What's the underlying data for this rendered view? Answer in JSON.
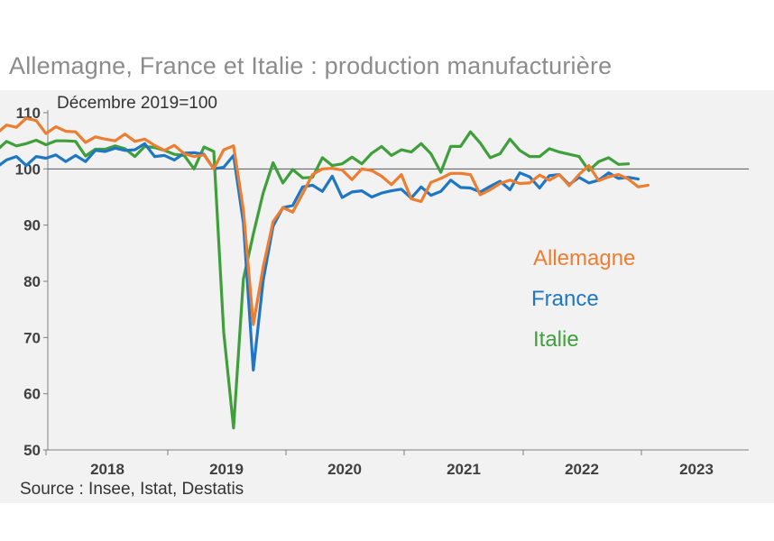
{
  "chart_data": {
    "type": "line",
    "title": "Allemagne, France et Italie : production manufacturière",
    "subtitle": "Décembre 2019=100",
    "source": "Source : Insee, Istat, Destatis",
    "start": [
      2017,
      7
    ],
    "ylim": [
      50,
      110
    ],
    "yticks": [
      50,
      60,
      70,
      80,
      90,
      100,
      110
    ],
    "reference_line": 100,
    "xtick_labels": [
      "2018",
      "2019",
      "2020",
      "2021",
      "2022",
      "2023"
    ],
    "series": [
      {
        "name": "Allemagne",
        "color": "#ed7d31",
        "values": [
          108.2,
          106.3,
          107.8,
          107.4,
          109.0,
          108.6,
          106.3,
          107.5,
          106.7,
          106.6,
          104.7,
          105.7,
          105.3,
          105.0,
          106.2,
          104.9,
          105.3,
          104.2,
          103.3,
          104.2,
          102.7,
          102.2,
          102.5,
          100.0,
          103.4,
          104.1,
          92.7,
          72.3,
          82.5,
          90.6,
          93.1,
          92.3,
          95.6,
          99.0,
          100.0,
          100.1,
          99.8,
          98.1,
          100.0,
          99.7,
          98.7,
          97.2,
          99.0,
          94.7,
          94.2,
          97.6,
          98.3,
          99.2,
          99.2,
          99.0,
          95.4,
          96.3,
          97.4,
          98.0,
          97.4,
          97.5,
          98.9,
          98.0,
          99.0,
          97.0,
          99.0,
          100.6,
          97.9,
          98.6,
          99.0,
          98.2,
          96.8,
          97.1
        ]
      },
      {
        "name": "France",
        "color": "#1f77c4",
        "values": [
          100.6,
          100.3,
          101.6,
          102.2,
          100.6,
          102.2,
          101.9,
          102.5,
          101.3,
          102.4,
          101.3,
          103.3,
          103.1,
          103.7,
          103.3,
          103.4,
          104.5,
          102.2,
          102.4,
          101.6,
          102.8,
          102.9,
          102.6,
          100.0,
          100.3,
          102.4,
          90.4,
          64.2,
          80.1,
          89.8,
          93.1,
          93.5,
          96.8,
          97.1,
          96.0,
          98.7,
          94.9,
          95.9,
          96.1,
          95.0,
          95.7,
          96.1,
          96.4,
          94.8,
          96.8,
          95.3,
          96.0,
          98.0,
          96.7,
          96.6,
          95.9,
          96.9,
          97.8,
          96.3,
          99.3,
          98.6,
          96.6,
          98.8,
          99.0,
          97.2,
          98.5,
          97.5,
          98.0,
          99.3,
          98.3,
          98.5,
          98.2
        ]
      },
      {
        "name": "Italie",
        "color": "#3f9f3a",
        "values": [
          105.5,
          103.3,
          104.9,
          104.1,
          104.5,
          105.1,
          104.3,
          105.0,
          105.0,
          104.9,
          102.3,
          103.5,
          103.5,
          104.1,
          103.6,
          102.2,
          104.0,
          103.8,
          103.3,
          102.6,
          102.4,
          100.0,
          103.9,
          103.1,
          70.9,
          53.9,
          80.4,
          88.4,
          95.7,
          101.1,
          97.5,
          99.9,
          98.4,
          98.5,
          102.0,
          100.6,
          100.9,
          102.1,
          100.9,
          102.8,
          104.0,
          102.4,
          103.4,
          103.0,
          104.5,
          102.7,
          99.4,
          104.0,
          104.0,
          106.6,
          104.6,
          102.0,
          102.7,
          105.3,
          103.3,
          102.2,
          102.2,
          103.6,
          103.0,
          102.6,
          102.2,
          99.7,
          101.3,
          102.0,
          100.8,
          100.9
        ]
      }
    ]
  }
}
